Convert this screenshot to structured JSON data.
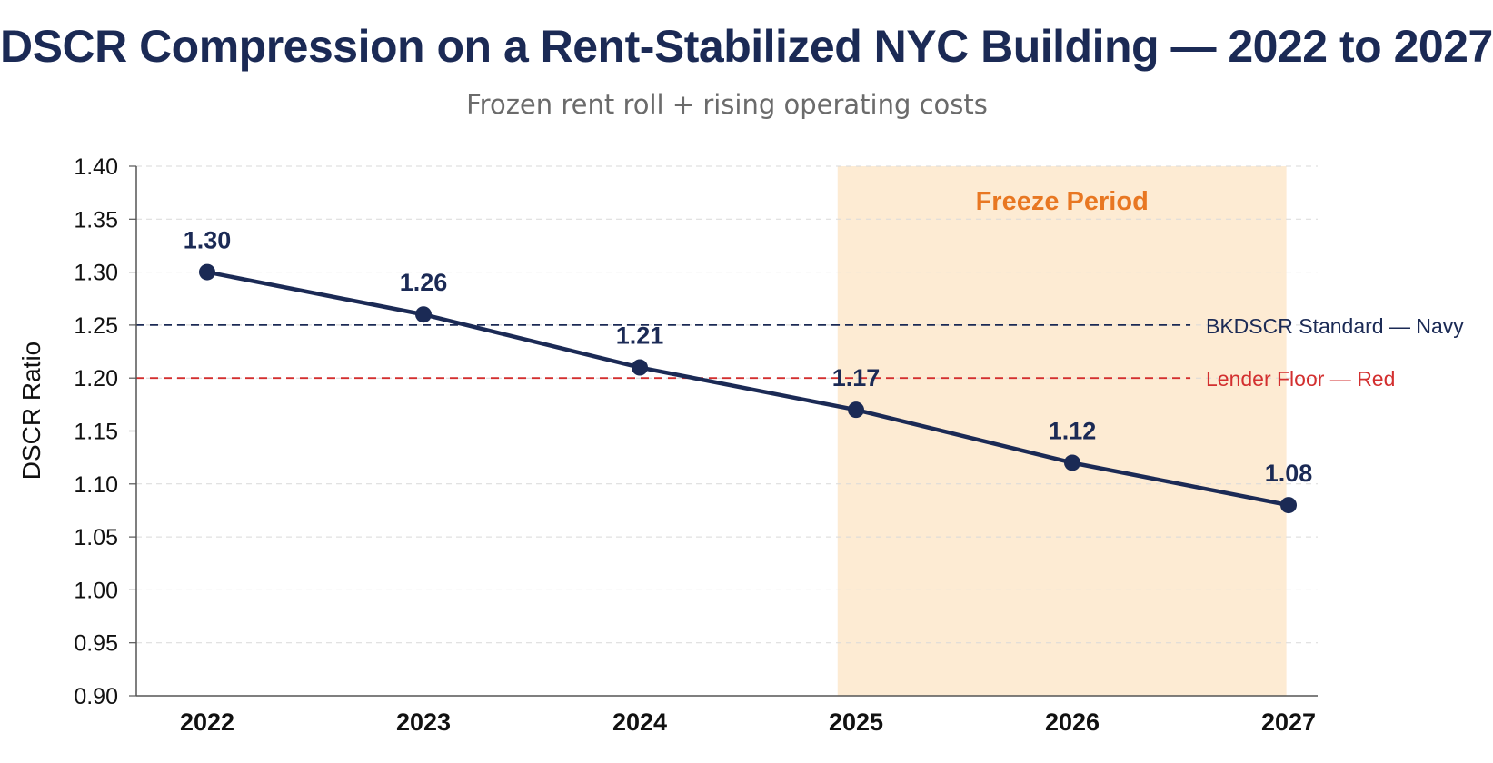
{
  "chart_data": {
    "type": "line",
    "title": "DSCR Compression on a Rent-Stabilized NYC Building — 2022 to 2027",
    "subtitle": "Frozen rent roll + rising operating costs",
    "xlabel": "",
    "ylabel": "DSCR Ratio",
    "categories": [
      "2022",
      "2023",
      "2024",
      "2025",
      "2026",
      "2027"
    ],
    "series": [
      {
        "values": [
          1.3,
          1.26,
          1.21,
          1.17,
          1.12,
          1.08
        ],
        "labels": [
          "1.30",
          "1.26",
          "1.21",
          "1.17",
          "1.12",
          "1.08"
        ],
        "color": "#1b2a55"
      }
    ],
    "ylim": [
      0.9,
      1.4
    ],
    "yticks": [
      0.9,
      0.95,
      1.0,
      1.05,
      1.1,
      1.15,
      1.2,
      1.25,
      1.3,
      1.35,
      1.4
    ],
    "ytick_labels": [
      "0.90",
      "0.95",
      "1.00",
      "1.05",
      "1.10",
      "1.15",
      "1.20",
      "1.25",
      "1.30",
      "1.35",
      "1.40"
    ],
    "grid": true,
    "reference_lines": [
      {
        "value": 1.25,
        "label": "BKDSCR Standard — Navy",
        "color": "#1b2a55"
      },
      {
        "value": 1.2,
        "label": "Lender Floor — Red",
        "color": "#d32f2f"
      }
    ],
    "shaded_region": {
      "from": "2025",
      "to": "2027",
      "label": "Freeze Period",
      "color": "#fdebd3",
      "label_color": "#e87722"
    }
  }
}
